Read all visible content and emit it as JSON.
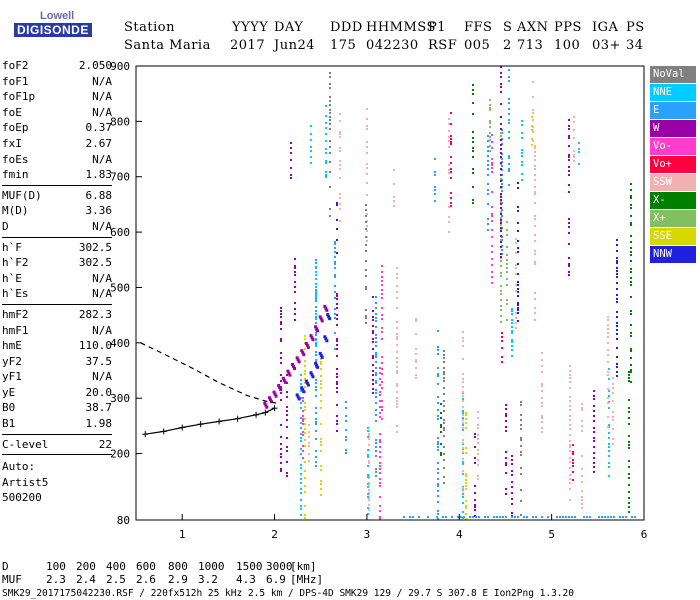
{
  "logo": {
    "line1": "Lowell",
    "line2": "DIGISONDE"
  },
  "header": {
    "labels": [
      "Station",
      "YYYY",
      "DAY",
      "DDD",
      "HHMMSS",
      "P1",
      "FFS",
      "S",
      "AXN",
      "PPS",
      "IGA",
      "PS"
    ],
    "values": [
      "Santa Maria",
      "2017",
      "Jun24",
      "175",
      "042230",
      "RSF",
      "005",
      "2",
      "713",
      "100",
      "03+",
      "34"
    ]
  },
  "params": [
    [
      {
        "name": "foF2",
        "value": "2.050"
      },
      {
        "name": "foF1",
        "value": "N/A"
      },
      {
        "name": "foF1p",
        "value": "N/A"
      },
      {
        "name": "foE",
        "value": "N/A"
      },
      {
        "name": "foEp",
        "value": "0.37"
      },
      {
        "name": "fxI",
        "value": "2.67"
      },
      {
        "name": "foEs",
        "value": "N/A"
      },
      {
        "name": "fmin",
        "value": "1.83"
      }
    ],
    [
      {
        "name": "MUF(D)",
        "value": "6.88"
      },
      {
        "name": "M(D)",
        "value": "3.36"
      },
      {
        "name": "D",
        "value": "N/A"
      }
    ],
    [
      {
        "name": "h`F",
        "value": "302.5"
      },
      {
        "name": "h`F2",
        "value": "302.5"
      },
      {
        "name": "h`E",
        "value": "N/A"
      },
      {
        "name": "h`Es",
        "value": "N/A"
      }
    ],
    [
      {
        "name": "hmF2",
        "value": "282.3"
      },
      {
        "name": "hmF1",
        "value": "N/A"
      },
      {
        "name": "hmE",
        "value": "110.0"
      },
      {
        "name": "yF2",
        "value": "37.5"
      },
      {
        "name": "yF1",
        "value": "N/A"
      },
      {
        "name": "yE",
        "value": "20.0"
      },
      {
        "name": "B0",
        "value": "38.7"
      },
      {
        "name": "B1",
        "value": "1.98"
      }
    ],
    [
      {
        "name": "C-level",
        "value": "22"
      }
    ]
  ],
  "auto": {
    "line1": "Auto:",
    "line2": "Artist5",
    "line3": "500200"
  },
  "legend": [
    {
      "label": "NoVal",
      "color": "#808080"
    },
    {
      "label": "NNE",
      "color": "#00ccff"
    },
    {
      "label": "E",
      "color": "#2aa0ff"
    },
    {
      "label": "W",
      "color": "#9900a8"
    },
    {
      "label": "Vo-",
      "color": "#ff3ccc"
    },
    {
      "label": "Vo+",
      "color": "#ff0040"
    },
    {
      "label": "SSW",
      "color": "#f4b0b0"
    },
    {
      "label": "X-",
      "color": "#008000"
    },
    {
      "label": "X+",
      "color": "#80c060"
    },
    {
      "label": "SSE",
      "color": "#d8d800"
    },
    {
      "label": "NNW",
      "color": "#2020e0"
    }
  ],
  "bottom": {
    "d_label": "D",
    "d_values": [
      "100",
      "200",
      "400",
      "600",
      "800",
      "1000",
      "1500",
      "3000"
    ],
    "d_unit": "[km]",
    "muf_label": "MUF",
    "muf_values": [
      "2.3",
      "2.4",
      "2.5",
      "2.6",
      "2.9",
      "3.2",
      "4.3",
      "6.9"
    ],
    "muf_unit": "[MHz]"
  },
  "footer": "SMK29_2017175042230.RSF / 220fx512h 25 kHz 2.5 km / DPS-4D SMK29 129 / 29.7 S 307.8 E Ion2Png 1.3.20",
  "chart_data": {
    "type": "scatter",
    "title": "",
    "xlabel": "",
    "ylabel": "",
    "xlim": [
      0.5,
      6
    ],
    "ylim": [
      80,
      900
    ],
    "x_ticks": [
      1,
      2,
      3,
      4,
      5,
      6
    ],
    "y_ticks": [
      80,
      200,
      300,
      400,
      500,
      600,
      700,
      800,
      900
    ],
    "grid": false,
    "legend_position": "right",
    "series": [
      {
        "name": "trace-o",
        "color": "#9900a8",
        "x": [
          1.9,
          1.95,
          2.0,
          2.05,
          2.1,
          2.15,
          2.2,
          2.25,
          2.3,
          2.35,
          2.4,
          2.45,
          2.5,
          2.55
        ],
        "y": [
          290,
          300,
          310,
          322,
          335,
          348,
          360,
          372,
          385,
          398,
          412,
          428,
          446,
          465
        ]
      },
      {
        "name": "trace-x",
        "color": "#2020e0",
        "x": [
          2.25,
          2.3,
          2.35,
          2.4,
          2.45,
          2.5,
          2.55,
          2.58
        ],
        "y": [
          305,
          318,
          330,
          345,
          362,
          380,
          410,
          450
        ]
      },
      {
        "name": "profile-fit",
        "color": "#000000",
        "x": [
          0.6,
          0.8,
          1.0,
          1.2,
          1.4,
          1.6,
          1.8,
          1.9,
          2.0
        ],
        "y": [
          235,
          240,
          247,
          253,
          258,
          263,
          270,
          274,
          282
        ]
      },
      {
        "name": "topside-profile",
        "color": "#000000",
        "x": [
          0.55,
          0.8,
          1.1,
          1.4,
          1.7,
          1.9,
          2.05
        ],
        "y": [
          400,
          380,
          355,
          328,
          305,
          295,
          290
        ]
      }
    ]
  }
}
